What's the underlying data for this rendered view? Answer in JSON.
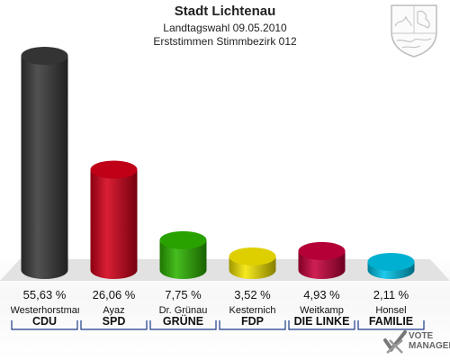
{
  "header": {
    "title": "Stadt Lichtenau",
    "subtitle1": "Landtagswahl 09.05.2010",
    "subtitle2": "Erststimmen Stimmbezirk 012"
  },
  "crest": {
    "icon": "nrw-coat-of-arms-icon"
  },
  "branding": {
    "line1": "VOTE",
    "line2": "MANAGER",
    "icon": "vote-manager-logo-icon"
  },
  "chart_data": {
    "type": "bar",
    "categories": [
      "CDU",
      "SPD",
      "GRÜNE",
      "FDP",
      "DIE LINKE",
      "FAMILIE"
    ],
    "candidates": [
      "Westerhorstmann",
      "Ayaz",
      "Dr. Grünau",
      "Kesternich",
      "Weitkamp",
      "Honsel"
    ],
    "values": [
      55.63,
      26.06,
      7.75,
      3.52,
      4.93,
      2.11
    ],
    "value_labels": [
      "55,63 %",
      "26,06 %",
      "7,75 %",
      "3,52 %",
      "4,93 %",
      "2,11 %"
    ],
    "colors": [
      "#3a3a3a",
      "#d4001a",
      "#2db400",
      "#f5e600",
      "#c8003c",
      "#00c3e8"
    ],
    "ylim": [
      0,
      60
    ]
  }
}
